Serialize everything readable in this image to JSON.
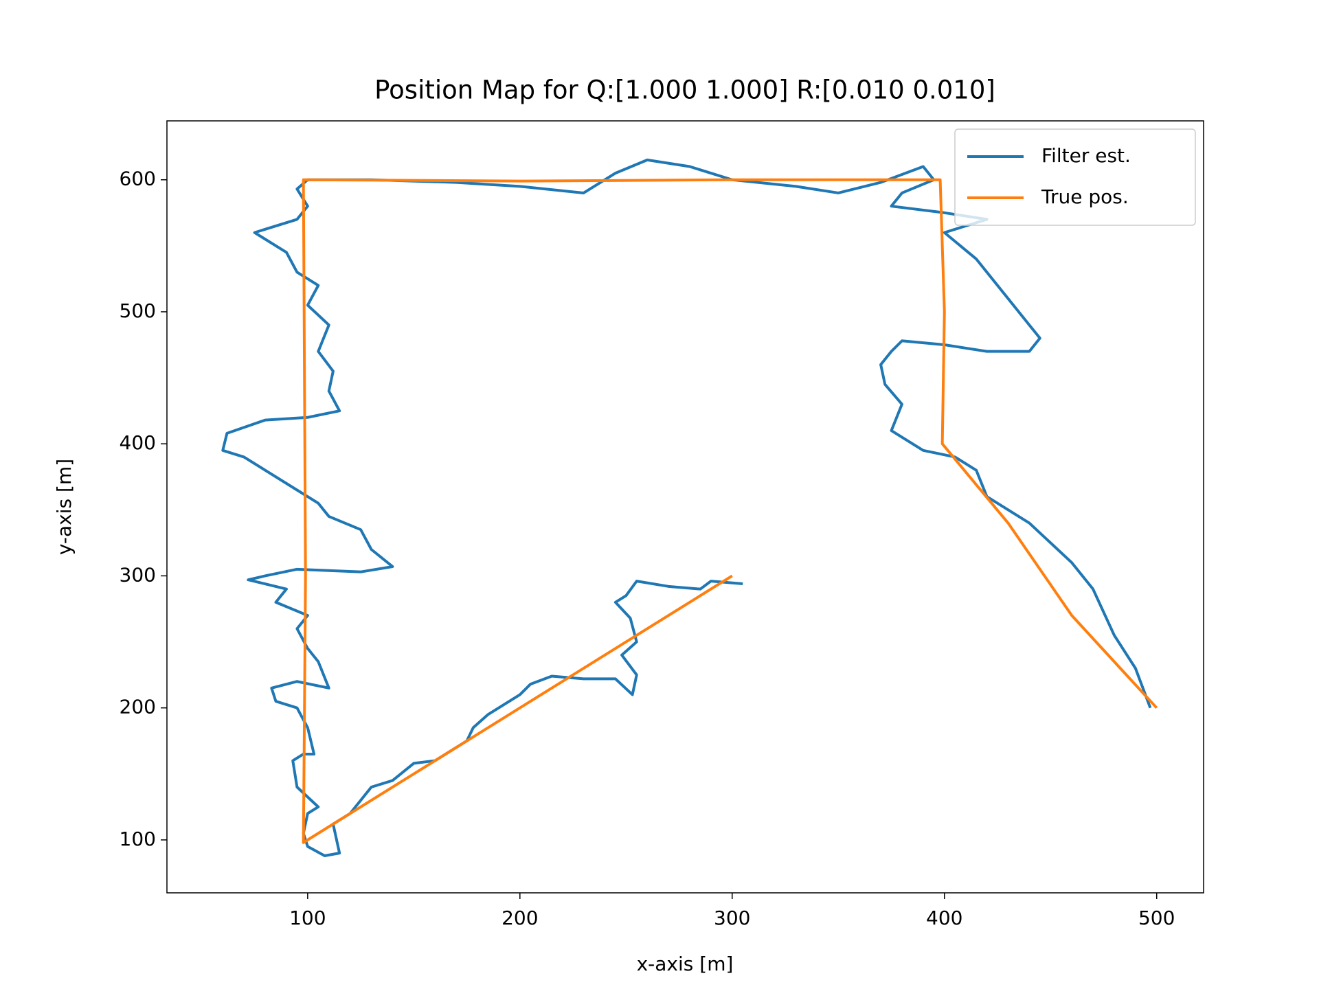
{
  "chart_data": {
    "type": "line",
    "title": "Position Map for Q:[1.000 1.000] R:[0.010 0.010]",
    "x_label": "x-axis [m]",
    "y_label": "y-axis [m]",
    "xlim": [
      33.7,
      522.1
    ],
    "ylim": [
      59.9,
      644.6
    ],
    "xticks": [
      100,
      200,
      300,
      400,
      500
    ],
    "yticks": [
      100,
      200,
      300,
      400,
      500,
      600
    ],
    "legend": "upper right",
    "series": [
      {
        "name": "Filter est.",
        "color": "#1f77b4",
        "x": [
          305,
          290,
          285,
          270,
          255,
          250,
          245,
          252,
          255,
          248,
          255,
          253,
          245,
          230,
          215,
          205,
          200,
          195,
          185,
          178,
          175,
          170,
          160,
          150,
          140,
          130,
          125,
          120,
          112,
          115,
          108,
          100,
          98,
          100,
          105,
          95,
          93,
          98,
          103,
          100,
          95,
          85,
          83,
          95,
          110,
          105,
          100,
          95,
          100,
          85,
          90,
          72,
          80,
          95,
          125,
          140,
          130,
          125,
          110,
          105,
          95,
          80,
          70,
          60,
          62,
          80,
          100,
          115,
          110,
          112,
          105,
          110,
          100,
          105,
          95,
          90,
          75,
          95,
          100,
          95,
          100,
          130,
          170,
          200,
          230,
          245,
          260,
          280,
          300,
          330,
          350,
          370,
          390,
          395,
          380,
          375,
          400,
          420,
          410,
          400,
          415,
          430,
          440,
          445,
          440,
          420,
          400,
          380,
          375,
          370,
          372,
          380,
          375,
          390,
          405,
          415,
          420,
          440,
          460,
          470,
          480,
          490,
          497
        ],
        "values": [
          294,
          296,
          290,
          292,
          296,
          285,
          280,
          268,
          250,
          240,
          225,
          210,
          222,
          222,
          224,
          218,
          210,
          205,
          195,
          185,
          175,
          170,
          160,
          158,
          145,
          140,
          130,
          120,
          112,
          90,
          88,
          95,
          105,
          120,
          125,
          140,
          160,
          165,
          165,
          185,
          200,
          205,
          215,
          220,
          215,
          235,
          245,
          260,
          270,
          280,
          290,
          297,
          300,
          305,
          303,
          307,
          320,
          335,
          345,
          355,
          365,
          380,
          390,
          395,
          408,
          418,
          420,
          425,
          440,
          455,
          470,
          490,
          505,
          520,
          530,
          545,
          560,
          570,
          580,
          593,
          600,
          600,
          598,
          595,
          590,
          605,
          615,
          610,
          600,
          595,
          590,
          598,
          610,
          600,
          590,
          580,
          575,
          570,
          565,
          560,
          540,
          510,
          490,
          480,
          470,
          470,
          475,
          478,
          470,
          460,
          445,
          430,
          410,
          395,
          390,
          380,
          360,
          340,
          310,
          290,
          255,
          230,
          200
        ]
      },
      {
        "name": "True pos.",
        "color": "#ff7f0e",
        "x": [
          300,
          98,
          99,
          98,
          200,
          300,
          398,
          400,
          399,
          430,
          460,
          500
        ],
        "values": [
          300,
          98,
          300,
          600,
          599,
          600,
          600,
          500,
          400,
          340,
          270,
          200
        ]
      }
    ]
  }
}
